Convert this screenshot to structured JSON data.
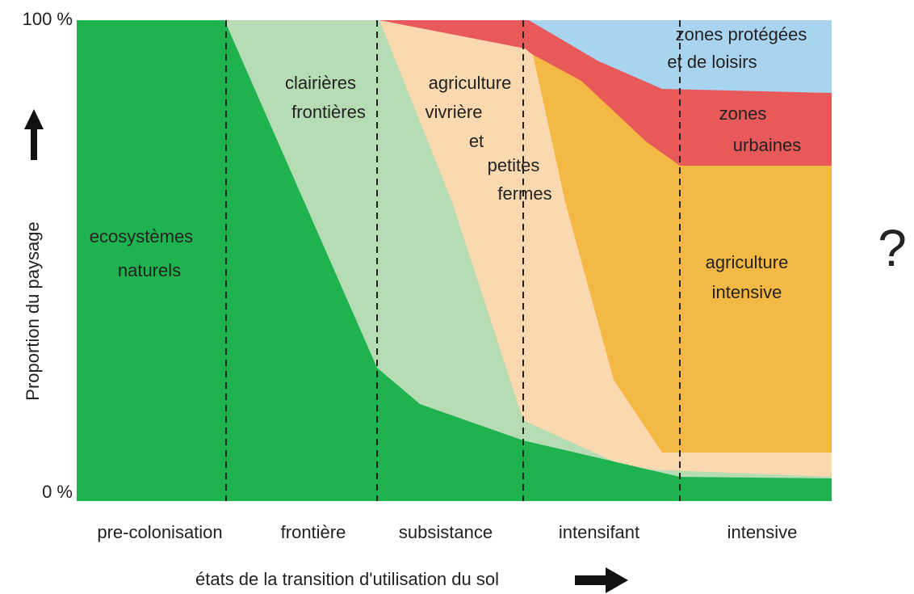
{
  "axis": {
    "y_top": "100 %",
    "y_bottom": "0 %",
    "y_label": "Proportion du paysage",
    "x_label": "états de la transition d'utilisation du sol"
  },
  "stages": [
    "pre-colonisation",
    "frontière",
    "subsistance",
    "intensifant",
    "intensive"
  ],
  "regions": [
    {
      "lines": [
        "ecosystèmes",
        "naturels"
      ]
    },
    {
      "lines": [
        "clairières",
        "frontières"
      ]
    },
    {
      "lines": [
        "agriculture",
        "vivrière",
        "et",
        "petites",
        "fermes"
      ]
    },
    {
      "lines": [
        "agriculture",
        "intensive"
      ]
    },
    {
      "lines": [
        "zones",
        "urbaines"
      ]
    },
    {
      "lines": [
        "zones protégées",
        "et de loisirs"
      ]
    }
  ],
  "question": "?"
}
